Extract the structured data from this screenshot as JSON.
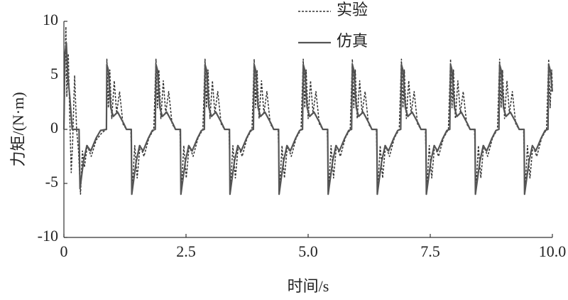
{
  "chart_data": {
    "type": "line",
    "xlabel": "时间/s",
    "ylabel": "力矩/(N·m)",
    "xlim": [
      0,
      10
    ],
    "ylim": [
      -10,
      10
    ],
    "xticks": [
      0,
      2.5,
      {
        "value": 5,
        "label": "5.0"
      },
      7.5,
      {
        "value": 10,
        "label": "10.0"
      }
    ],
    "yticks": [
      -10,
      -5,
      0,
      5,
      10
    ],
    "legend": "top",
    "series": [
      {
        "name": "实验",
        "color": "#333333",
        "dash": true,
        "x": [
          0,
          0.02,
          0.04,
          0.06,
          0.09,
          0.12,
          0.15,
          0.18,
          0.22,
          0.26,
          0.3,
          0.34,
          0.38,
          0.42,
          0.48,
          0.56,
          0.66,
          0.78,
          0.87,
          0.88,
          0.91,
          0.94,
          0.98,
          1.03,
          1.08,
          1.14,
          1.21,
          1.28,
          1.37,
          1.4,
          1.45,
          1.5,
          1.56,
          1.64,
          1.74,
          1.84,
          1.885,
          1.915,
          1.945,
          1.985,
          2.035,
          2.085,
          2.145,
          2.215,
          2.285,
          2.375,
          2.405,
          2.455,
          2.505,
          2.565,
          2.645,
          2.745,
          2.845,
          2.89,
          2.92,
          2.95,
          2.99,
          3.04,
          3.09,
          3.15,
          3.22,
          3.29,
          3.38,
          3.41,
          3.46,
          3.51,
          3.57,
          3.65,
          3.75,
          3.85,
          3.895,
          3.925,
          3.955,
          3.995,
          4.045,
          4.095,
          4.155,
          4.225,
          4.295,
          4.385,
          4.415,
          4.465,
          4.515,
          4.575,
          4.655,
          4.755,
          4.855,
          4.9,
          4.93,
          4.96,
          5.0,
          5.05,
          5.1,
          5.16,
          5.23,
          5.3,
          5.39,
          5.42,
          5.47,
          5.52,
          5.58,
          5.66,
          5.76,
          5.86,
          5.905,
          5.935,
          5.965,
          6.005,
          6.055,
          6.105,
          6.165,
          6.235,
          6.305,
          6.395,
          6.425,
          6.475,
          6.525,
          6.585,
          6.665,
          6.765,
          6.865,
          6.91,
          6.94,
          6.97,
          7.01,
          7.06,
          7.11,
          7.17,
          7.24,
          7.31,
          7.4,
          7.43,
          7.48,
          7.53,
          7.59,
          7.67,
          7.77,
          7.87,
          7.915,
          7.945,
          7.975,
          8.015,
          8.065,
          8.115,
          8.175,
          8.245,
          8.315,
          8.405,
          8.435,
          8.485,
          8.535,
          8.595,
          8.675,
          8.775,
          8.875,
          8.92,
          8.95,
          8.98,
          9.02,
          9.07,
          9.12,
          9.18,
          9.25,
          9.32,
          9.41,
          9.44,
          9.49,
          9.54,
          9.6,
          9.68,
          9.78,
          9.88,
          9.925,
          9.955,
          9.985,
          10
        ],
        "values": [
          0,
          5,
          9.5,
          3,
          7,
          1,
          -4,
          -1,
          5,
          0,
          -2,
          -6,
          -2,
          -3.5,
          -1.5,
          -2.5,
          -1,
          -0.3,
          0,
          6.5,
          2,
          5.5,
          1,
          4.5,
          1.5,
          3.5,
          0.5,
          0,
          0,
          -5.5,
          -1.5,
          -4.5,
          -1.5,
          -2.5,
          -0.8,
          0,
          6.5,
          2,
          5.5,
          1,
          4.5,
          1.5,
          3.5,
          0.5,
          0,
          0,
          -5.5,
          -1.5,
          -4.5,
          -1.5,
          -2.5,
          -0.8,
          0,
          6.5,
          2,
          5.5,
          1,
          4.5,
          1.5,
          3.5,
          0.5,
          0,
          0,
          -5.5,
          -1.5,
          -4.5,
          -1.5,
          -2.5,
          -0.8,
          0,
          6.5,
          2,
          5.5,
          1,
          4.5,
          1.5,
          3.5,
          0.5,
          0,
          0,
          -5.5,
          -1.5,
          -4.5,
          -1.5,
          -2.5,
          -0.8,
          0,
          6.5,
          2,
          5.5,
          1,
          4.5,
          1.5,
          3.5,
          0.5,
          0,
          0,
          -5.5,
          -1.5,
          -4.5,
          -1.5,
          -2.5,
          -0.8,
          0,
          6.5,
          2,
          5.5,
          1,
          4.5,
          1.5,
          3.5,
          0.5,
          0,
          0,
          -5.5,
          -1.5,
          -4.5,
          -1.5,
          -2.5,
          -0.8,
          0,
          6.5,
          2,
          5.5,
          1,
          4.5,
          1.5,
          3.5,
          0.5,
          0,
          0,
          -5.5,
          -1.5,
          -4.5,
          -1.5,
          -2.5,
          -0.8,
          0,
          6.5,
          2,
          5.5,
          1,
          4.5,
          1.5,
          3.5,
          0.5,
          0,
          0,
          -5.5,
          -1.5,
          -4.5,
          -1.5,
          -2.5,
          -0.8,
          0,
          6.5,
          2,
          5.5,
          1,
          4.5,
          1.5,
          3.5,
          0.5,
          0,
          0,
          -5.5,
          -1.5,
          -4.5,
          -1.5,
          -2.5,
          -0.8,
          0,
          6.5,
          2,
          5.5,
          4
        ]
      },
      {
        "name": "仿真",
        "color": "#555555",
        "dash": false,
        "x": [
          0,
          0.02,
          0.05,
          0.08,
          0.12,
          0.17,
          0.31,
          0.33,
          0.4,
          0.47,
          0.55,
          0.66,
          0.75,
          0.87,
          0.88,
          0.91,
          0.96,
          1.01,
          1.1,
          1.23,
          1.28,
          1.38,
          1.39,
          1.48,
          1.55,
          1.62,
          1.73,
          1.81,
          1.87,
          1.885,
          1.915,
          1.965,
          2.015,
          2.105,
          2.235,
          2.285,
          2.385,
          2.395,
          2.485,
          2.555,
          2.625,
          2.735,
          2.815,
          2.875,
          2.89,
          2.92,
          2.97,
          3.02,
          3.11,
          3.24,
          3.29,
          3.39,
          3.4,
          3.49,
          3.56,
          3.63,
          3.74,
          3.82,
          3.88,
          3.895,
          3.925,
          3.975,
          4.025,
          4.115,
          4.245,
          4.295,
          4.395,
          4.405,
          4.495,
          4.565,
          4.635,
          4.745,
          4.825,
          4.885,
          4.9,
          4.93,
          4.98,
          5.03,
          5.12,
          5.25,
          5.3,
          5.4,
          5.41,
          5.5,
          5.57,
          5.64,
          5.75,
          5.83,
          5.89,
          5.905,
          5.935,
          5.985,
          6.035,
          6.125,
          6.255,
          6.305,
          6.405,
          6.415,
          6.505,
          6.575,
          6.645,
          6.755,
          6.835,
          6.895,
          6.91,
          6.94,
          6.99,
          7.04,
          7.13,
          7.26,
          7.31,
          7.41,
          7.42,
          7.51,
          7.58,
          7.65,
          7.76,
          7.84,
          7.9,
          7.915,
          7.945,
          7.995,
          8.045,
          8.135,
          8.265,
          8.315,
          8.415,
          8.425,
          8.515,
          8.585,
          8.655,
          8.765,
          8.845,
          8.905,
          8.92,
          8.95,
          9.0,
          9.05,
          9.14,
          9.27,
          9.32,
          9.42,
          9.43,
          9.52,
          9.59,
          9.66,
          9.77,
          9.85,
          9.91,
          9.925,
          9.955,
          10
        ],
        "values": [
          0,
          7,
          8,
          5,
          3,
          0,
          0,
          -5.5,
          -3,
          -1.5,
          -2,
          -0.8,
          -0.1,
          0,
          6,
          5.5,
          2,
          1.2,
          1.6,
          0.5,
          0,
          0,
          -6,
          -3,
          -1.5,
          -2,
          -0.8,
          -0.1,
          0,
          6,
          5.5,
          2,
          1.2,
          1.6,
          0.5,
          0,
          0,
          -6,
          -3,
          -1.5,
          -2,
          -0.8,
          -0.1,
          0,
          6,
          5.5,
          2,
          1.2,
          1.6,
          0.5,
          0,
          0,
          -6,
          -3,
          -1.5,
          -2,
          -0.8,
          -0.1,
          0,
          6,
          5.5,
          2,
          1.2,
          1.6,
          0.5,
          0,
          0,
          -6,
          -3,
          -1.5,
          -2,
          -0.8,
          -0.1,
          0,
          6,
          5.5,
          2,
          1.2,
          1.6,
          0.5,
          0,
          0,
          -6,
          -3,
          -1.5,
          -2,
          -0.8,
          -0.1,
          0,
          6,
          5.5,
          2,
          1.2,
          1.6,
          0.5,
          0,
          0,
          -6,
          -3,
          -1.5,
          -2,
          -0.8,
          -0.1,
          0,
          6,
          5.5,
          2,
          1.2,
          1.6,
          0.5,
          0,
          0,
          -6,
          -3,
          -1.5,
          -2,
          -0.8,
          -0.1,
          0,
          6,
          5.5,
          2,
          1.2,
          1.6,
          0.5,
          0,
          0,
          -6,
          -3,
          -1.5,
          -2,
          -0.8,
          -0.1,
          0,
          6,
          5.5,
          2,
          1.2,
          1.6,
          0.5,
          0,
          0,
          -6,
          -3,
          -1.5,
          -2,
          -0.8,
          -0.1,
          0,
          6,
          5.5,
          3.5
        ]
      }
    ]
  }
}
